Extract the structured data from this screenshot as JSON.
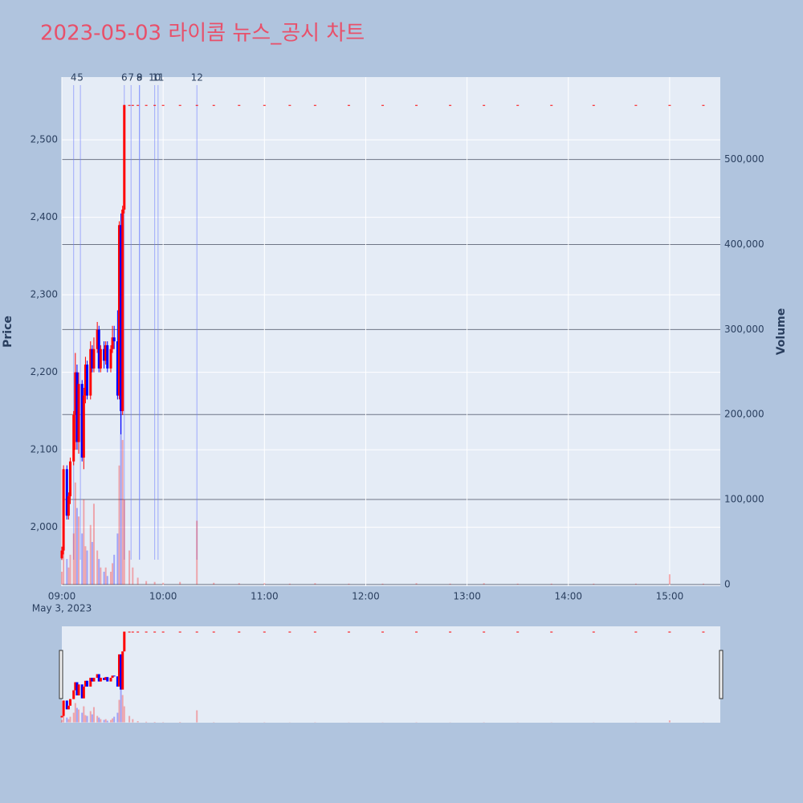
{
  "chart_data": {
    "type": "candlestick",
    "title": "2023-05-03 라이콤 뉴스_공시 차트",
    "y_label": "Price",
    "y2_label": "Volume",
    "x_sublabel": "May 3, 2023",
    "increasing_color": "#ff0000",
    "decreasing_color": "#0000ff",
    "x": [
      "09:00",
      "09:01",
      "09:03",
      "09:04",
      "09:05",
      "09:07",
      "09:08",
      "09:09",
      "09:10",
      "09:12",
      "09:13",
      "09:14",
      "09:15",
      "09:17",
      "09:18",
      "09:19",
      "09:21",
      "09:22",
      "09:23",
      "09:25",
      "09:26",
      "09:27",
      "09:29",
      "09:30",
      "09:31",
      "09:33",
      "09:34",
      "09:35",
      "09:36",
      "09:37",
      "09:40",
      "09:42",
      "09:45",
      "09:50",
      "09:55",
      "10:00",
      "10:10",
      "10:20",
      "10:30",
      "10:45",
      "11:00",
      "11:15",
      "11:30",
      "11:50",
      "12:10",
      "12:30",
      "12:50",
      "13:10",
      "13:30",
      "13:50",
      "14:15",
      "14:40",
      "15:00",
      "15:20"
    ],
    "open": [
      1960,
      1970,
      2075,
      2015,
      2040,
      2085,
      2145,
      2200,
      2110,
      2185,
      2090,
      2170,
      2210,
      2170,
      2230,
      2205,
      2230,
      2255,
      2205,
      2230,
      2215,
      2235,
      2205,
      2230,
      2245,
      2240,
      2170,
      2390,
      2150,
      2410,
      2545,
      2545,
      2545,
      2545,
      2545,
      2545,
      2545,
      2545,
      2545,
      2545,
      2545,
      2545,
      2545,
      2545,
      2545,
      2545,
      2545,
      2545,
      2545,
      2545,
      2545,
      2545,
      2545,
      2545
    ],
    "high": [
      1975,
      2080,
      2080,
      2045,
      2090,
      2150,
      2225,
      2210,
      2200,
      2190,
      2180,
      2220,
      2215,
      2240,
      2235,
      2245,
      2265,
      2260,
      2235,
      2240,
      2240,
      2240,
      2235,
      2260,
      2260,
      2280,
      2395,
      2405,
      2415,
      2545,
      2545,
      2545,
      2545,
      2545,
      2545,
      2545,
      2545,
      2545,
      2545,
      2545,
      2545,
      2545,
      2545,
      2545,
      2545,
      2545,
      2545,
      2545,
      2545,
      2545,
      2545,
      2545,
      2545,
      2545
    ],
    "low": [
      1958,
      1965,
      2010,
      2010,
      2030,
      2080,
      2100,
      2100,
      2095,
      2085,
      2075,
      2160,
      2165,
      2165,
      2200,
      2200,
      2225,
      2200,
      2200,
      2205,
      2210,
      2200,
      2200,
      2225,
      2230,
      2165,
      2165,
      2120,
      2145,
      2405,
      2545,
      2545,
      2545,
      2545,
      2545,
      2545,
      2545,
      2545,
      2545,
      2545,
      2545,
      2545,
      2545,
      2545,
      2545,
      2545,
      2545,
      2545,
      2545,
      2545,
      2545,
      2545,
      2545,
      2545
    ],
    "close": [
      1970,
      2075,
      2015,
      2040,
      2085,
      2145,
      2200,
      2110,
      2185,
      2090,
      2170,
      2210,
      2170,
      2230,
      2205,
      2230,
      2255,
      2205,
      2230,
      2215,
      2235,
      2205,
      2230,
      2245,
      2240,
      2170,
      2390,
      2150,
      2410,
      2545,
      2545,
      2545,
      2545,
      2545,
      2545,
      2545,
      2545,
      2545,
      2545,
      2545,
      2545,
      2545,
      2545,
      2545,
      2545,
      2545,
      2545,
      2545,
      2545,
      2545,
      2545,
      2545,
      2545,
      2545
    ],
    "volume": [
      15000,
      45000,
      30000,
      20000,
      35000,
      60000,
      120000,
      90000,
      80000,
      60000,
      100000,
      45000,
      40000,
      70000,
      50000,
      95000,
      40000,
      30000,
      20000,
      15000,
      20000,
      10000,
      15000,
      25000,
      35000,
      60000,
      140000,
      230000,
      170000,
      100000,
      40000,
      20000,
      8000,
      4000,
      3000,
      2000,
      3000,
      75000,
      2000,
      1500,
      1500,
      1000,
      1500,
      1000,
      1000,
      1500,
      1000,
      1500,
      1000,
      1000,
      1000,
      1000,
      12000,
      1000
    ],
    "annotations": [
      {
        "x": "09:07",
        "label": 4
      },
      {
        "x": "09:11",
        "label": 5
      },
      {
        "x": "09:37",
        "label": 6
      },
      {
        "x": "09:41",
        "label": 7
      },
      {
        "x": "09:46",
        "label": 8
      },
      {
        "x": "09:46",
        "label": 9
      },
      {
        "x": "09:55",
        "label": 10
      },
      {
        "x": "09:57",
        "label": 11
      },
      {
        "x": "10:20",
        "label": 12
      }
    ],
    "xlim": [
      "09:00",
      "15:30"
    ],
    "xticks": [
      "09:00",
      "10:00",
      "11:00",
      "12:00",
      "13:00",
      "14:00",
      "15:00"
    ],
    "ylim": [
      1924,
      2581
    ],
    "yticks": [
      {
        "value": 2000,
        "label": "2,000"
      },
      {
        "value": 2100,
        "label": "2,100"
      },
      {
        "value": 2200,
        "label": "2,200"
      },
      {
        "value": 2300,
        "label": "2,300"
      },
      {
        "value": 2400,
        "label": "2,400"
      },
      {
        "value": 2500,
        "label": "2,500"
      }
    ],
    "y2lim": [
      -2000,
      597000
    ],
    "y2ticks": [
      0,
      {
        "value": 100000,
        "label": "100,000"
      },
      {
        "value": 200000,
        "label": "200,000"
      },
      {
        "value": 300000,
        "label": "300,000"
      },
      {
        "value": 400000,
        "label": "400,000"
      },
      {
        "value": 500000,
        "label": "500,000"
      }
    ]
  }
}
